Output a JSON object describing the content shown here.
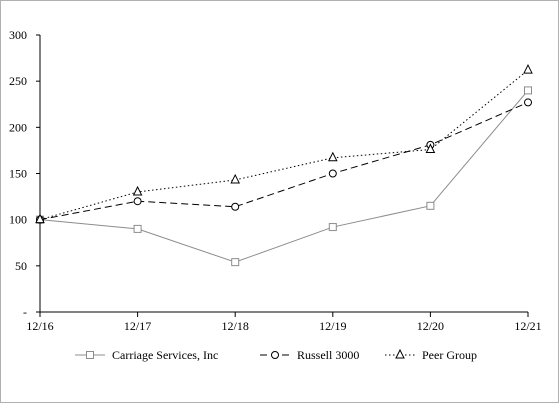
{
  "chart_data": {
    "type": "line",
    "title": "",
    "xlabel": "",
    "ylabel": "",
    "categories": [
      "12/16",
      "12/17",
      "12/18",
      "12/19",
      "12/20",
      "12/21"
    ],
    "ylim": [
      0,
      300
    ],
    "yticks": [
      0,
      50,
      100,
      150,
      200,
      250,
      300
    ],
    "ytick_labels": [
      "-",
      "50",
      "100",
      "150",
      "200",
      "250",
      "300"
    ],
    "grid": false,
    "legend_position": "bottom",
    "series": [
      {
        "name": "Carriage Services, Inc",
        "values": [
          100,
          90,
          54,
          92,
          115,
          240
        ],
        "color": "#8c8c8c",
        "dash": "solid",
        "marker": "square"
      },
      {
        "name": "Russell 3000",
        "values": [
          100,
          120,
          114,
          150,
          181,
          227
        ],
        "color": "#000000",
        "dash": "dashed",
        "marker": "circle"
      },
      {
        "name": "Peer Group",
        "values": [
          100,
          130,
          143,
          167,
          176,
          262
        ],
        "color": "#000000",
        "dash": "dotted",
        "marker": "triangle"
      }
    ]
  }
}
